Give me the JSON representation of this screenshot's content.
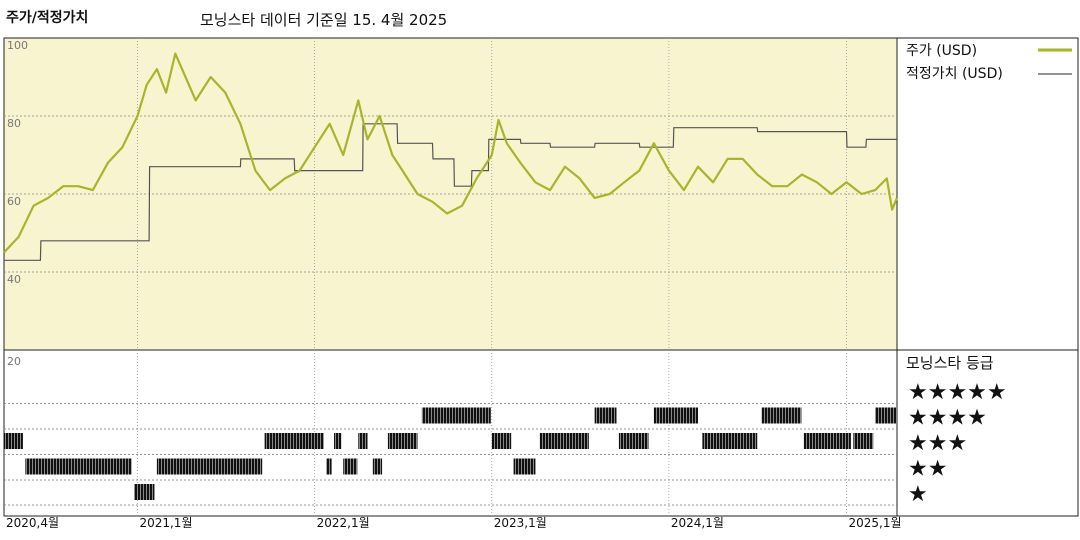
{
  "header": {
    "title": "주가/적정가치",
    "subtitle": "모닝스타 데이터 기준일 15. 4월 2025"
  },
  "legend": {
    "price_label": "주가 (USD)",
    "fair_label": "적정가치 (USD)",
    "rating_title": "모닝스타 등급",
    "stars": [
      "★★★★★",
      "★★★★",
      "★★★",
      "★★",
      "★"
    ]
  },
  "colors": {
    "price_line": "#a8b42a",
    "fair_line": "#555555",
    "upper_bg": "#f8f4d0",
    "grid": "#777777"
  },
  "chart_data": [
    {
      "type": "line",
      "x_label_list": [
        "2020,4월",
        "2021,1월",
        "2022,1월",
        "2023,1월",
        "2024,1월",
        "2025,1월"
      ],
      "x_ticks": [
        "2020-04-01",
        "2021-01-01",
        "2022-01-01",
        "2023-01-01",
        "2024-01-01",
        "2025-01-01"
      ],
      "xlim": [
        "2020-04-01",
        "2025-04-15"
      ],
      "y_tick_labels": [
        "100",
        "80",
        "60",
        "40"
      ],
      "y_ticks": [
        100,
        80,
        60,
        40
      ],
      "ylim": [
        20,
        100
      ],
      "series": [
        {
          "name": "주가 (USD)",
          "x": [
            "2020-04-01",
            "2020-05-01",
            "2020-06-01",
            "2020-07-01",
            "2020-08-01",
            "2020-09-01",
            "2020-10-01",
            "2020-11-01",
            "2020-12-01",
            "2021-01-01",
            "2021-01-20",
            "2021-02-10",
            "2021-03-01",
            "2021-03-20",
            "2021-04-10",
            "2021-05-01",
            "2021-06-01",
            "2021-07-01",
            "2021-08-01",
            "2021-09-01",
            "2021-10-01",
            "2021-11-01",
            "2021-12-01",
            "2022-01-01",
            "2022-02-01",
            "2022-03-01",
            "2022-04-01",
            "2022-04-20",
            "2022-05-15",
            "2022-06-10",
            "2022-07-01",
            "2022-08-01",
            "2022-09-01",
            "2022-10-01",
            "2022-11-01",
            "2022-12-01",
            "2023-01-01",
            "2023-01-15",
            "2023-02-01",
            "2023-03-01",
            "2023-04-01",
            "2023-05-01",
            "2023-06-01",
            "2023-07-01",
            "2023-08-01",
            "2023-09-01",
            "2023-10-01",
            "2023-11-01",
            "2023-12-01",
            "2024-01-01",
            "2024-02-01",
            "2024-03-01",
            "2024-04-01",
            "2024-05-01",
            "2024-06-01",
            "2024-07-01",
            "2024-08-01",
            "2024-09-01",
            "2024-10-01",
            "2024-11-01",
            "2024-12-01",
            "2025-01-01",
            "2025-02-01",
            "2025-03-01",
            "2025-03-25",
            "2025-04-05",
            "2025-04-15"
          ],
          "y": [
            45,
            49,
            57,
            59,
            62,
            62,
            61,
            68,
            72,
            80,
            88,
            92,
            86,
            96,
            90,
            84,
            90,
            86,
            78,
            66,
            61,
            64,
            66,
            72,
            78,
            70,
            84,
            74,
            80,
            70,
            66,
            60,
            58,
            55,
            57,
            64,
            70,
            79,
            73,
            68,
            63,
            61,
            67,
            64,
            59,
            60,
            63,
            66,
            73,
            66,
            61,
            67,
            63,
            69,
            69,
            65,
            62,
            62,
            65,
            63,
            60,
            63,
            60,
            61,
            64,
            56,
            59
          ]
        },
        {
          "name": "적정가치 (USD)",
          "x": [
            "2020-04-01",
            "2020-06-15",
            "2020-06-16",
            "2021-01-25",
            "2021-01-26",
            "2021-08-01",
            "2021-08-02",
            "2021-11-20",
            "2021-11-21",
            "2022-04-10",
            "2022-04-11",
            "2022-06-20",
            "2022-06-21",
            "2022-09-01",
            "2022-09-02",
            "2022-10-15",
            "2022-10-16",
            "2022-11-20",
            "2022-11-21",
            "2022-12-25",
            "2022-12-26",
            "2023-03-01",
            "2023-03-02",
            "2023-05-01",
            "2023-05-02",
            "2023-08-01",
            "2023-08-02",
            "2023-11-01",
            "2023-11-02",
            "2024-01-10",
            "2024-01-11",
            "2024-07-01",
            "2024-07-02",
            "2025-01-01",
            "2025-01-02",
            "2025-02-10",
            "2025-02-11",
            "2025-04-15"
          ],
          "y": [
            43,
            43,
            48,
            48,
            67,
            67,
            69,
            69,
            66,
            66,
            78,
            78,
            73,
            73,
            69,
            69,
            62,
            62,
            66,
            66,
            74,
            74,
            73,
            73,
            72,
            72,
            73,
            73,
            72,
            72,
            77,
            77,
            76,
            76,
            72,
            72,
            74,
            74
          ]
        }
      ]
    },
    {
      "type": "heatmap",
      "title": "모닝스타 등급",
      "y_labels": [
        "★★★★★",
        "★★★★",
        "★★★",
        "★★",
        "★"
      ],
      "x_ticks": [
        "2020-04-01",
        "2021-01-01",
        "2022-01-01",
        "2023-01-01",
        "2024-01-01",
        "2025-01-01"
      ],
      "rating_periods": [
        {
          "stars": 3,
          "start": "2020-04-01",
          "end": "2020-05-10"
        },
        {
          "stars": 2,
          "start": "2020-05-15",
          "end": "2020-12-20"
        },
        {
          "stars": 1,
          "start": "2020-12-25",
          "end": "2021-02-05"
        },
        {
          "stars": 2,
          "start": "2021-02-10",
          "end": "2021-09-15"
        },
        {
          "stars": 3,
          "start": "2021-09-20",
          "end": "2022-01-20"
        },
        {
          "stars": 2,
          "start": "2022-01-25",
          "end": "2022-02-05"
        },
        {
          "stars": 3,
          "start": "2022-02-10",
          "end": "2022-02-25"
        },
        {
          "stars": 2,
          "start": "2022-03-01",
          "end": "2022-03-30"
        },
        {
          "stars": 3,
          "start": "2022-04-01",
          "end": "2022-04-20"
        },
        {
          "stars": 2,
          "start": "2022-05-01",
          "end": "2022-05-20"
        },
        {
          "stars": 3,
          "start": "2022-06-01",
          "end": "2022-08-01"
        },
        {
          "stars": 4,
          "start": "2022-08-10",
          "end": "2022-12-30"
        },
        {
          "stars": 3,
          "start": "2023-01-01",
          "end": "2023-02-10"
        },
        {
          "stars": 2,
          "start": "2023-02-15",
          "end": "2023-04-01"
        },
        {
          "stars": 3,
          "start": "2023-04-10",
          "end": "2023-07-20"
        },
        {
          "stars": 4,
          "start": "2023-08-01",
          "end": "2023-09-15"
        },
        {
          "stars": 3,
          "start": "2023-09-20",
          "end": "2023-11-20"
        },
        {
          "stars": 4,
          "start": "2023-12-01",
          "end": "2024-03-01"
        },
        {
          "stars": 3,
          "start": "2024-03-10",
          "end": "2024-07-01"
        },
        {
          "stars": 4,
          "start": "2024-07-10",
          "end": "2024-09-30"
        },
        {
          "stars": 3,
          "start": "2024-10-05",
          "end": "2025-01-10"
        },
        {
          "stars": 3,
          "start": "2025-01-15",
          "end": "2025-02-25"
        },
        {
          "stars": 4,
          "start": "2025-03-01",
          "end": "2025-04-15"
        }
      ]
    }
  ]
}
